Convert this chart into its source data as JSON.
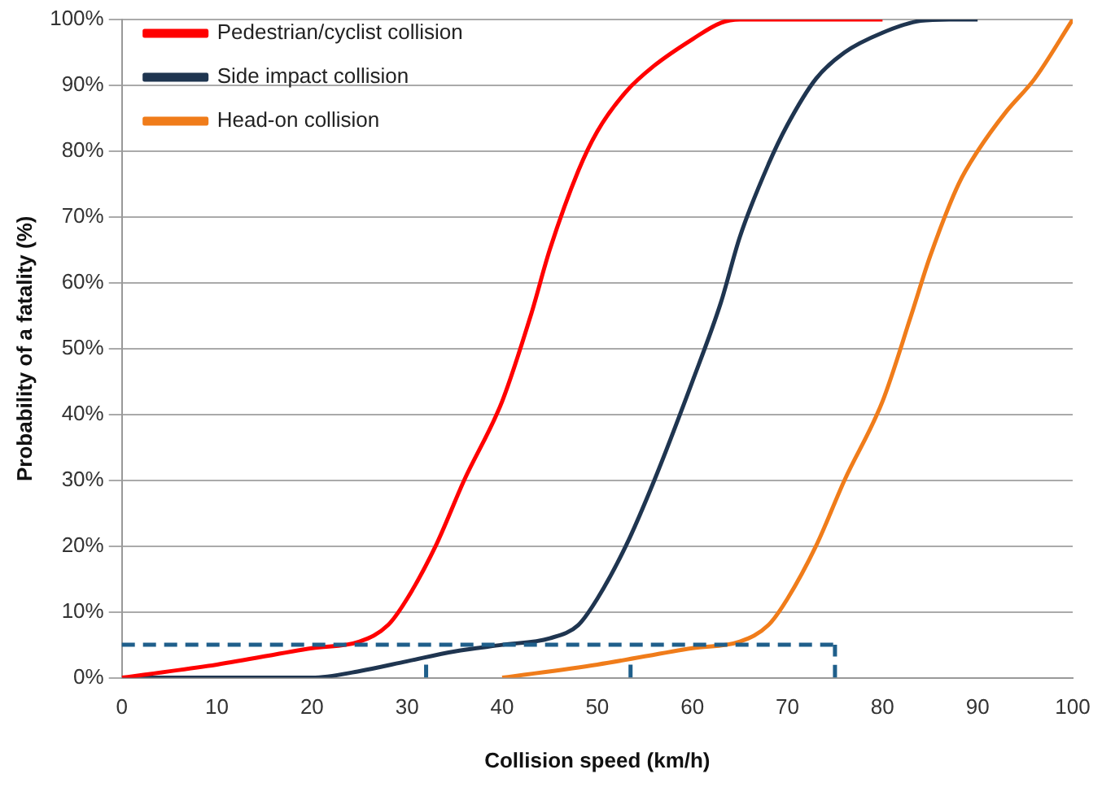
{
  "chart_data": {
    "type": "line",
    "xlabel": "Collision speed (km/h)",
    "ylabel": "Probability of a fatality (%)",
    "xlim": [
      0,
      100
    ],
    "xticks": [
      0,
      10,
      20,
      30,
      40,
      50,
      60,
      70,
      80,
      90,
      100
    ],
    "ylim": [
      0,
      100
    ],
    "yticks": [
      {
        "value": 0,
        "label": "0%"
      },
      {
        "value": 10,
        "label": "10%"
      },
      {
        "value": 20,
        "label": "20%"
      },
      {
        "value": 30,
        "label": "30%"
      },
      {
        "value": 40,
        "label": "40%"
      },
      {
        "value": 50,
        "label": "50%"
      },
      {
        "value": 60,
        "label": "60%"
      },
      {
        "value": 70,
        "label": "70%"
      },
      {
        "value": 80,
        "label": "80%"
      },
      {
        "value": 90,
        "label": "90%"
      },
      {
        "value": 100,
        "label": "100%"
      }
    ],
    "grid": "y",
    "legend": "top left",
    "marker": "none",
    "line_style": "solid",
    "series": [
      {
        "name": "Pedestrian/cyclist collision",
        "color": "#ff0000",
        "x": [
          0,
          10,
          20,
          25,
          28,
          30,
          33,
          36,
          40,
          43,
          45,
          48,
          50,
          53,
          56,
          60,
          63,
          65,
          70,
          75,
          80
        ],
        "values": [
          0,
          2,
          4.5,
          5.5,
          8,
          12,
          20,
          30,
          42,
          55,
          65,
          77,
          83,
          89,
          93,
          97,
          99.5,
          100,
          100,
          100,
          100
        ]
      },
      {
        "name": "Side impact collision",
        "color": "#1f3550",
        "x": [
          0,
          20,
          25,
          30,
          35,
          40,
          45,
          48,
          50,
          53,
          56,
          60,
          63,
          65,
          68,
          70,
          73,
          76,
          80,
          84,
          87,
          90
        ],
        "values": [
          0,
          0,
          1,
          2.5,
          4,
          5,
          6,
          8,
          12,
          20,
          30,
          45,
          57,
          67,
          78,
          84,
          91,
          95,
          98,
          99.8,
          100,
          100
        ]
      },
      {
        "name": "Head-on collision",
        "color": "#f07c1a",
        "x": [
          40,
          50,
          60,
          65,
          68,
          70,
          73,
          76,
          80,
          83,
          85,
          88,
          90,
          93,
          96,
          100
        ],
        "values": [
          0,
          2,
          4.5,
          5.5,
          8,
          12,
          20,
          30,
          42,
          55,
          64,
          75,
          80,
          86,
          91,
          100
        ]
      },
      {
        "color": "#1f5f8b",
        "line_style": "dashed",
        "x": [
          32,
          32
        ],
        "values": [
          0,
          2.5
        ]
      },
      {
        "color": "#1f5f8b",
        "line_style": "dashed",
        "x": [
          53.5,
          53.5
        ],
        "values": [
          0,
          2.5
        ]
      },
      {
        "color": "#1f5f8b",
        "line_style": "dashed",
        "x": [
          75,
          75
        ],
        "values": [
          0,
          5
        ]
      }
    ],
    "ref_lines": [
      {
        "axis": "y",
        "value": 5,
        "color": "#1f5f8b",
        "line_style": "dashed"
      }
    ]
  }
}
